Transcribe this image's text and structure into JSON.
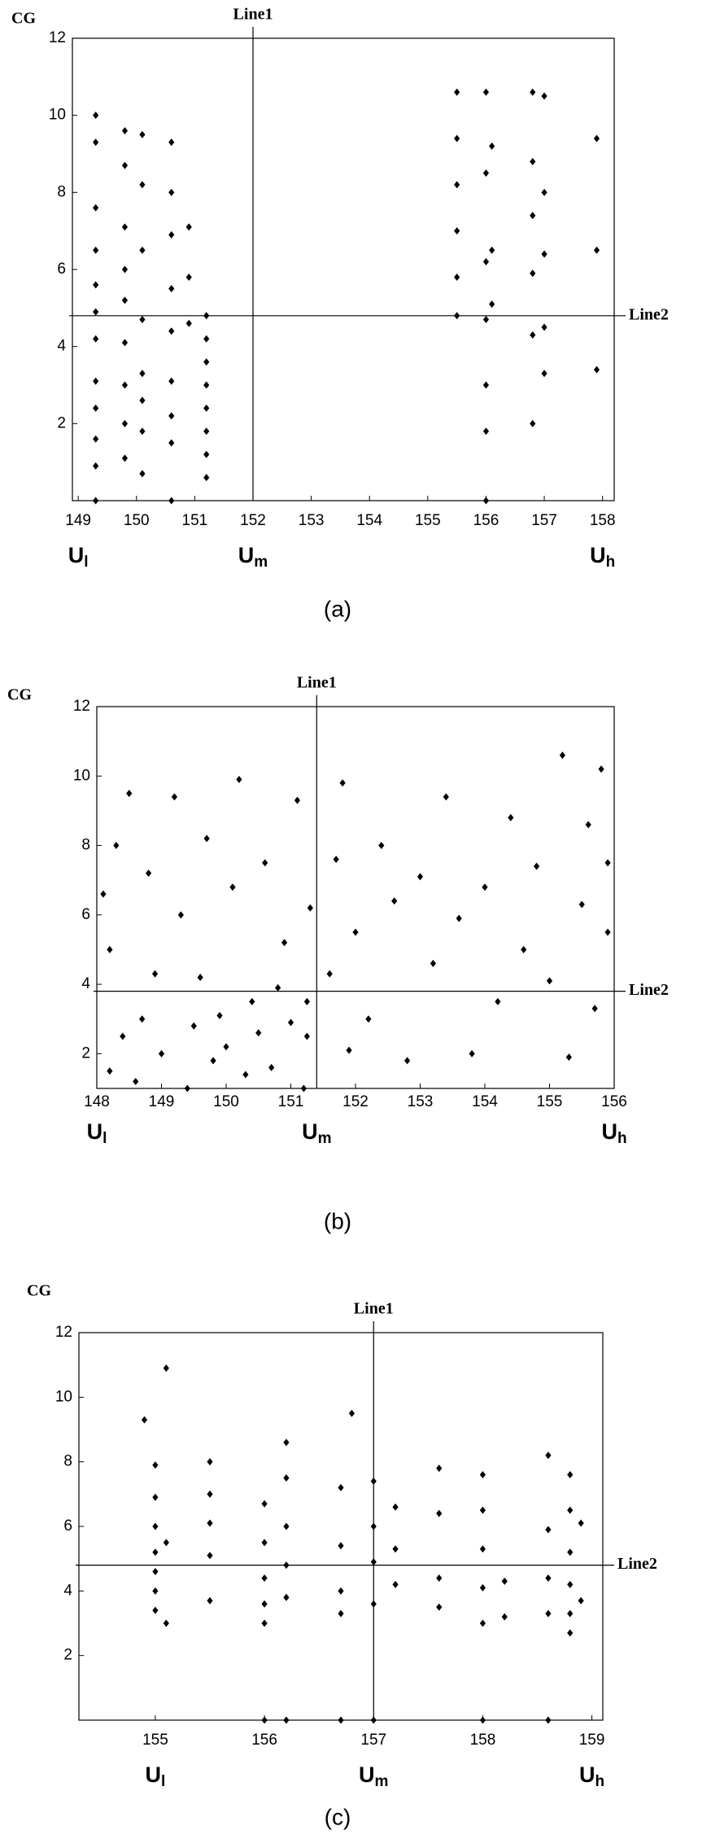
{
  "chart_data": [
    {
      "type": "scatter",
      "ylabel": "CG",
      "caption": "(a)",
      "xlim": [
        148.9,
        158.2
      ],
      "ylim": [
        0,
        12
      ],
      "xticks": [
        149,
        150,
        151,
        152,
        153,
        154,
        155,
        156,
        157,
        158
      ],
      "yticks": [
        2,
        4,
        6,
        8,
        10,
        12
      ],
      "line1": {
        "label": "Line1",
        "x": 152
      },
      "line2": {
        "label": "Line2",
        "y": 4.8
      },
      "x_markers": [
        {
          "label": "U",
          "sub": "l",
          "value": 149
        },
        {
          "label": "U",
          "sub": "m",
          "value": 152
        },
        {
          "label": "U",
          "sub": "h",
          "value": 158
        }
      ],
      "color": "#000000",
      "x": [
        149.3,
        149.3,
        149.3,
        149.3,
        149.3,
        149.3,
        149.3,
        149.3,
        149.3,
        149.3,
        149.3,
        149.3,
        149.8,
        149.8,
        149.8,
        149.8,
        149.8,
        149.8,
        149.8,
        149.8,
        149.8,
        150.1,
        150.1,
        150.1,
        150.1,
        150.1,
        150.1,
        150.1,
        150.1,
        150.6,
        150.6,
        150.6,
        150.6,
        150.6,
        150.6,
        150.6,
        150.6,
        150.6,
        150.9,
        150.9,
        150.9,
        151.2,
        151.2,
        151.2,
        151.2,
        151.2,
        151.2,
        151.2,
        151.2,
        155.5,
        155.5,
        155.5,
        155.5,
        155.5,
        155.5,
        156.0,
        156.0,
        156.0,
        156.0,
        156.0,
        156.0,
        156.0,
        156.1,
        156.1,
        156.1,
        156.8,
        156.8,
        156.8,
        156.8,
        156.8,
        156.8,
        157.0,
        157.0,
        157.0,
        157.0,
        157.0,
        157.9,
        157.9,
        157.9
      ],
      "values": [
        10.0,
        9.3,
        7.6,
        6.5,
        5.6,
        4.9,
        4.2,
        3.1,
        2.4,
        1.6,
        0.9,
        0.0,
        9.6,
        8.7,
        7.1,
        6.0,
        5.2,
        4.1,
        3.0,
        2.0,
        1.1,
        9.5,
        8.2,
        6.5,
        4.7,
        3.3,
        2.6,
        1.8,
        0.7,
        9.3,
        8.0,
        6.9,
        5.5,
        4.4,
        3.1,
        2.2,
        1.5,
        0.0,
        7.1,
        5.8,
        4.6,
        4.8,
        4.2,
        3.6,
        3.0,
        2.4,
        1.8,
        1.2,
        0.6,
        10.6,
        9.4,
        8.2,
        7.0,
        5.8,
        4.8,
        10.6,
        8.5,
        6.2,
        4.7,
        3.0,
        1.8,
        0.0,
        9.2,
        6.5,
        5.1,
        10.6,
        8.8,
        7.4,
        5.9,
        4.3,
        2.0,
        10.5,
        8.0,
        6.4,
        4.5,
        3.3,
        9.4,
        6.5,
        3.4
      ]
    },
    {
      "type": "scatter",
      "ylabel": "CG",
      "caption": "(b)",
      "xlim": [
        148,
        156
      ],
      "ylim": [
        1,
        12
      ],
      "xticks": [
        148,
        149,
        150,
        151,
        152,
        153,
        154,
        155,
        156
      ],
      "yticks": [
        2,
        4,
        6,
        8,
        10,
        12
      ],
      "line1": {
        "label": "Line1",
        "x": 151.4
      },
      "line2": {
        "label": "Line2",
        "y": 3.8
      },
      "x_markers": [
        {
          "label": "U",
          "sub": "l",
          "value": 148
        },
        {
          "label": "U",
          "sub": "m",
          "value": 151.4
        },
        {
          "label": "U",
          "sub": "h",
          "value": 156
        }
      ],
      "color": "#000000",
      "x": [
        148.1,
        148.2,
        148.2,
        148.3,
        148.4,
        148.5,
        148.6,
        148.7,
        148.8,
        148.9,
        149.0,
        149.2,
        149.3,
        149.4,
        149.5,
        149.6,
        149.7,
        149.8,
        149.9,
        150.0,
        150.1,
        150.2,
        150.3,
        150.4,
        150.5,
        150.6,
        150.7,
        150.8,
        150.9,
        151.0,
        151.1,
        151.2,
        151.25,
        151.25,
        151.3,
        151.6,
        151.7,
        151.8,
        151.9,
        152.0,
        152.2,
        152.4,
        152.6,
        152.8,
        153.0,
        153.2,
        153.4,
        153.6,
        153.8,
        154.0,
        154.2,
        154.4,
        154.6,
        154.8,
        155.0,
        155.2,
        155.3,
        155.5,
        155.6,
        155.7,
        155.8,
        155.9,
        155.9
      ],
      "values": [
        6.6,
        5.0,
        1.5,
        8.0,
        2.5,
        9.5,
        1.2,
        3.0,
        7.2,
        4.3,
        2.0,
        9.4,
        6.0,
        1.0,
        2.8,
        4.2,
        8.2,
        1.8,
        3.1,
        2.2,
        6.8,
        9.9,
        1.4,
        3.5,
        2.6,
        7.5,
        1.6,
        3.9,
        5.2,
        2.9,
        9.3,
        1.0,
        2.5,
        3.5,
        6.2,
        4.3,
        7.6,
        9.8,
        2.1,
        5.5,
        3.0,
        8.0,
        6.4,
        1.8,
        7.1,
        4.6,
        9.4,
        5.9,
        2.0,
        6.8,
        3.5,
        8.8,
        5.0,
        7.4,
        4.1,
        10.6,
        1.9,
        6.3,
        8.6,
        3.3,
        10.2,
        5.5,
        7.5
      ]
    },
    {
      "type": "scatter",
      "ylabel": "CG",
      "caption": "(c)",
      "xlim": [
        154.3,
        159.1
      ],
      "ylim": [
        0,
        12
      ],
      "xticks": [
        155,
        156,
        157,
        158,
        159
      ],
      "yticks": [
        2,
        4,
        6,
        8,
        10,
        12
      ],
      "line1": {
        "label": "Line1",
        "x": 157
      },
      "line2": {
        "label": "Line2",
        "y": 4.8
      },
      "x_markers": [
        {
          "label": "U",
          "sub": "l",
          "value": 155
        },
        {
          "label": "U",
          "sub": "m",
          "value": 157
        },
        {
          "label": "U",
          "sub": "h",
          "value": 159
        }
      ],
      "color": "#000000",
      "x": [
        154.9,
        155.0,
        155.0,
        155.0,
        155.0,
        155.0,
        155.0,
        155.0,
        155.1,
        155.1,
        155.1,
        155.5,
        155.5,
        155.5,
        155.5,
        155.5,
        156.0,
        156.0,
        156.0,
        156.0,
        156.0,
        156.0,
        156.2,
        156.2,
        156.2,
        156.2,
        156.2,
        156.2,
        156.7,
        156.7,
        156.7,
        156.7,
        156.7,
        156.8,
        157.0,
        157.0,
        157.0,
        157.0,
        157.0,
        157.2,
        157.2,
        157.2,
        157.6,
        157.6,
        157.6,
        157.6,
        158.0,
        158.0,
        158.0,
        158.0,
        158.0,
        158.0,
        158.2,
        158.2,
        158.6,
        158.6,
        158.6,
        158.6,
        158.6,
        158.8,
        158.8,
        158.8,
        158.8,
        158.8,
        158.8,
        158.9,
        158.9
      ],
      "values": [
        9.3,
        7.9,
        6.9,
        6.0,
        5.2,
        4.6,
        4.0,
        3.4,
        10.9,
        5.5,
        3.0,
        8.0,
        7.0,
        6.1,
        5.1,
        3.7,
        6.7,
        5.5,
        4.4,
        3.6,
        3.0,
        0.0,
        8.6,
        7.5,
        6.0,
        4.8,
        3.8,
        0.0,
        7.2,
        5.4,
        4.0,
        3.3,
        0.0,
        9.5,
        7.4,
        6.0,
        4.9,
        3.6,
        0.0,
        6.6,
        5.3,
        4.2,
        7.8,
        6.4,
        4.4,
        3.5,
        7.6,
        6.5,
        5.3,
        4.1,
        3.0,
        0.0,
        4.3,
        3.2,
        8.2,
        5.9,
        4.4,
        3.3,
        0.0,
        7.6,
        6.5,
        5.2,
        4.2,
        3.3,
        2.7,
        6.1,
        3.7
      ]
    }
  ]
}
